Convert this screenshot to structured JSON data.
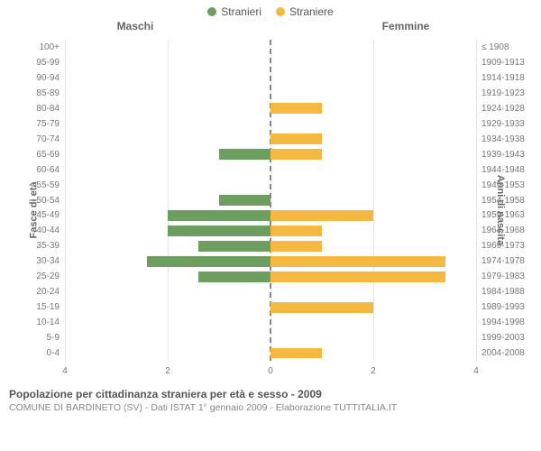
{
  "legend": {
    "male": {
      "label": "Stranieri",
      "color": "#6b9e5f"
    },
    "female": {
      "label": "Straniere",
      "color": "#f5b942"
    }
  },
  "headers": {
    "male": "Maschi",
    "female": "Femmine"
  },
  "axis": {
    "left_title": "Fasce di età",
    "right_title": "Anni di nascita",
    "xmax": 4,
    "xticks_left": [
      4,
      2,
      0
    ],
    "xticks_right": [
      2,
      4
    ]
  },
  "style": {
    "grid_color": "#e5e5e5",
    "center_dash_color": "#888888",
    "bg_color": "#ffffff",
    "text_color": "#777777"
  },
  "rows": [
    {
      "age": "100+",
      "birth": "≤ 1908",
      "m": 0,
      "f": 0
    },
    {
      "age": "95-99",
      "birth": "1909-1913",
      "m": 0,
      "f": 0
    },
    {
      "age": "90-94",
      "birth": "1914-1918",
      "m": 0,
      "f": 0
    },
    {
      "age": "85-89",
      "birth": "1919-1923",
      "m": 0,
      "f": 0
    },
    {
      "age": "80-84",
      "birth": "1924-1928",
      "m": 0,
      "f": 1
    },
    {
      "age": "75-79",
      "birth": "1929-1933",
      "m": 0,
      "f": 0
    },
    {
      "age": "70-74",
      "birth": "1934-1938",
      "m": 0,
      "f": 1
    },
    {
      "age": "65-69",
      "birth": "1939-1943",
      "m": 1,
      "f": 1
    },
    {
      "age": "60-64",
      "birth": "1944-1948",
      "m": 0,
      "f": 0
    },
    {
      "age": "55-59",
      "birth": "1949-1953",
      "m": 0,
      "f": 0
    },
    {
      "age": "50-54",
      "birth": "1954-1958",
      "m": 1,
      "f": 0
    },
    {
      "age": "45-49",
      "birth": "1959-1963",
      "m": 2,
      "f": 2
    },
    {
      "age": "40-44",
      "birth": "1964-1968",
      "m": 2,
      "f": 1
    },
    {
      "age": "35-39",
      "birth": "1969-1973",
      "m": 1.4,
      "f": 1
    },
    {
      "age": "30-34",
      "birth": "1974-1978",
      "m": 2.4,
      "f": 3.4
    },
    {
      "age": "25-29",
      "birth": "1979-1983",
      "m": 1.4,
      "f": 3.4
    },
    {
      "age": "20-24",
      "birth": "1984-1988",
      "m": 0,
      "f": 0
    },
    {
      "age": "15-19",
      "birth": "1989-1993",
      "m": 0,
      "f": 2
    },
    {
      "age": "10-14",
      "birth": "1994-1998",
      "m": 0,
      "f": 0
    },
    {
      "age": "5-9",
      "birth": "1999-2003",
      "m": 0,
      "f": 0
    },
    {
      "age": "0-4",
      "birth": "2004-2008",
      "m": 0,
      "f": 1
    }
  ],
  "footer": {
    "title": "Popolazione per cittadinanza straniera per età e sesso - 2009",
    "subtitle": "COMUNE DI BARDINETO (SV) - Dati ISTAT 1° gennaio 2009 - Elaborazione TUTTITALIA.IT"
  }
}
